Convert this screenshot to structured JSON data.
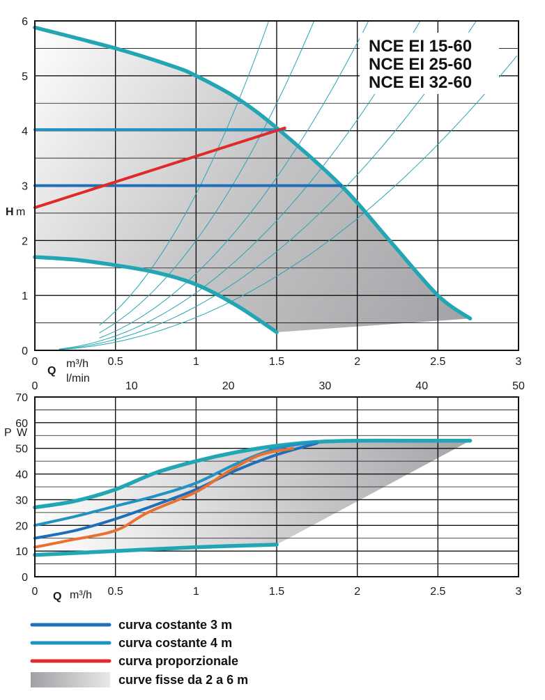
{
  "colors": {
    "const3": "#1f6fb8",
    "const4": "#2192c4",
    "prop": "#e02a2a",
    "fixed": "#23a6b4",
    "orange": "#e87030",
    "iso": "#23a6b4"
  },
  "legend": [
    {
      "key": "const3",
      "label": "curva costante 3 m"
    },
    {
      "key": "const4",
      "label": "curva costante 4 m"
    },
    {
      "key": "prop",
      "label": "curva proporzionale"
    },
    {
      "key": "band",
      "label": "curve fisse da 2 a 6 m"
    }
  ],
  "chart_data": [
    {
      "type": "line",
      "title": [
        "NCE EI 15-60",
        "NCE EI 25-60",
        "NCE EI 32-60"
      ],
      "xlabel": "Q",
      "xunit": "m³/h",
      "x2unit": "l/min",
      "ylabel": "H",
      "yunit": "m",
      "xlim": [
        0,
        3
      ],
      "ylim": [
        0,
        6
      ],
      "x2lim": [
        0,
        50
      ],
      "x_ticks": [
        "0",
        "0.5",
        "1",
        "1.5",
        "2",
        "2.5",
        "3"
      ],
      "y_ticks": [
        "0",
        "1",
        "2",
        "3",
        "4",
        "5",
        "6"
      ],
      "x2_ticks": [
        "0",
        "10",
        "20",
        "30",
        "40",
        "50"
      ],
      "grid": true,
      "series": [
        {
          "key": "fixed",
          "x": [
            0,
            0.5,
            0.85,
            1.0,
            1.25,
            1.5,
            1.9,
            2.2,
            2.5,
            2.7
          ],
          "y": [
            5.88,
            5.5,
            5.18,
            5.0,
            4.6,
            4.05,
            3.0,
            2.0,
            1.0,
            0.58
          ]
        },
        {
          "key": "fixed",
          "x": [
            0,
            0.25,
            0.5,
            0.75,
            1.0,
            1.25,
            1.5
          ],
          "y": [
            1.7,
            1.65,
            1.55,
            1.42,
            1.2,
            0.82,
            0.33
          ]
        },
        {
          "key": "const4",
          "x": [
            0,
            1.55
          ],
          "y": [
            4.02,
            4.02
          ]
        },
        {
          "key": "const3",
          "x": [
            0,
            1.9
          ],
          "y": [
            3.0,
            3.0
          ]
        },
        {
          "key": "prop",
          "x": [
            0,
            1.55
          ],
          "y": [
            2.6,
            4.05
          ]
        }
      ],
      "iso_curves": [
        0.6,
        0.8,
        1.05,
        1.4,
        2.0,
        2.85
      ]
    },
    {
      "type": "line",
      "xlabel": "Q",
      "xunit": "m³/h",
      "ylabel": "P",
      "yunit": "W",
      "xlim": [
        0,
        3
      ],
      "ylim": [
        0,
        70
      ],
      "x_ticks": [
        "0",
        "0.5",
        "1",
        "1.5",
        "2",
        "2.5",
        "3"
      ],
      "y_ticks": [
        "0",
        "10",
        "20",
        "30",
        "40",
        "50",
        "60",
        "70"
      ],
      "grid": true,
      "series": [
        {
          "key": "fixed",
          "x": [
            0,
            0.25,
            0.5,
            0.75,
            1.0,
            1.25,
            1.5,
            1.75,
            2.0,
            2.3,
            2.7
          ],
          "y": [
            27,
            29.5,
            34,
            40.5,
            45,
            48.5,
            51,
            52.5,
            53,
            53,
            53
          ]
        },
        {
          "key": "fixed",
          "x": [
            0,
            0.5,
            1.0,
            1.5
          ],
          "y": [
            8.5,
            10,
            11.5,
            12.5
          ]
        },
        {
          "key": "const3",
          "x": [
            0,
            0.25,
            0.5,
            0.75,
            1.0,
            1.25,
            1.5,
            1.75
          ],
          "y": [
            15,
            18,
            22.5,
            28,
            34,
            41.5,
            47.5,
            52
          ]
        },
        {
          "key": "const4",
          "x": [
            0,
            0.25,
            0.5,
            0.75,
            1.0,
            1.25,
            1.5,
            1.75
          ],
          "y": [
            20,
            23.5,
            27.5,
            31.5,
            36.5,
            44,
            50,
            52.5
          ]
        },
        {
          "key": "orange",
          "x": [
            0,
            0.2,
            0.5,
            0.7,
            1.0,
            1.2,
            1.4,
            1.6
          ],
          "y": [
            11.5,
            14,
            18,
            25,
            33,
            41,
            47.5,
            50
          ]
        }
      ]
    }
  ]
}
